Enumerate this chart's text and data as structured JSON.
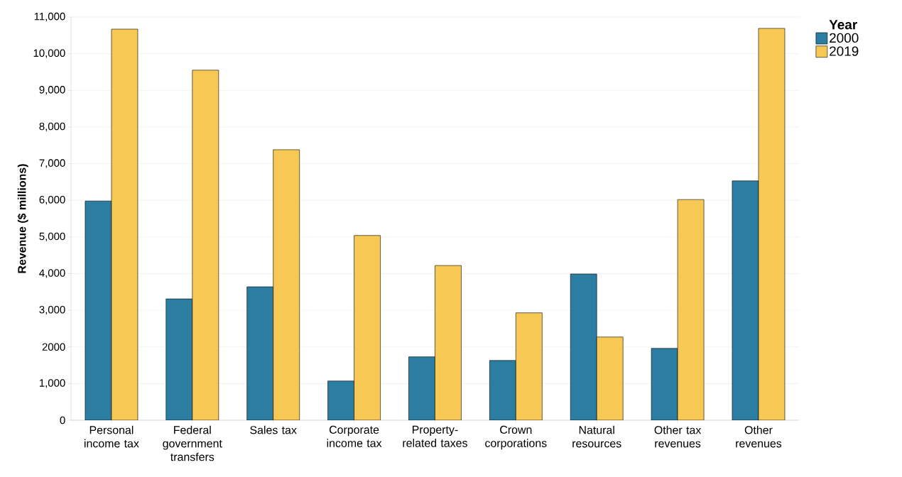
{
  "chart_data": {
    "type": "bar",
    "ylabel": "Revenue ($ millions)",
    "legend_title": "Year",
    "categories": [
      "Personal income tax",
      "Federal government transfers",
      "Sales tax",
      "Corporate income tax",
      "Property-related taxes",
      "Crown corporations",
      "Natural resources",
      "Other tax revenues",
      "Other revenues"
    ],
    "series": [
      {
        "name": "2000",
        "color": "#2b7ea1",
        "values": [
          5980,
          3310,
          3640,
          1070,
          1730,
          1630,
          3990,
          1960,
          6530
        ]
      },
      {
        "name": "2019",
        "color": "#f8c855",
        "values": [
          10670,
          9550,
          7380,
          5040,
          4220,
          2930,
          2270,
          6020,
          10690
        ]
      }
    ],
    "ylim": [
      0,
      11000
    ],
    "yticks": [
      0,
      {
        "value": 1000,
        "label": "1,000"
      },
      {
        "value": 2000,
        "label": "2000"
      },
      {
        "value": 3000,
        "label": "3,000"
      },
      {
        "value": 4000,
        "label": "4,000"
      },
      {
        "value": 5000,
        "label": "5,000"
      },
      {
        "value": 6000,
        "label": "6,000"
      },
      {
        "value": 7000,
        "label": "7,000"
      },
      {
        "value": 8000,
        "label": "8,000"
      },
      {
        "value": 9000,
        "label": "9,000"
      },
      {
        "value": 10000,
        "label": "10,000"
      },
      {
        "value": 11000,
        "label": "11,000"
      }
    ],
    "grid": "y",
    "legend": "top right"
  }
}
